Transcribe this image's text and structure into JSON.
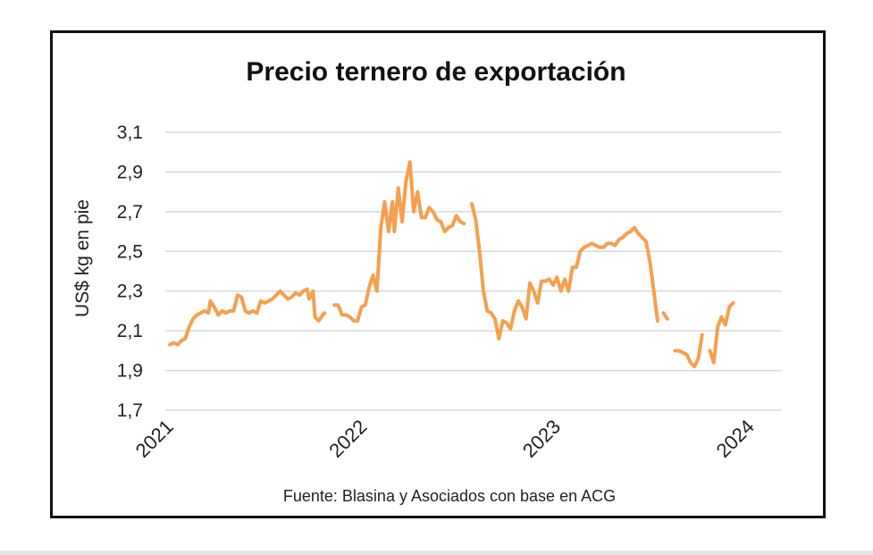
{
  "chart_data": {
    "type": "line",
    "title": "Precio ternero de exportación",
    "ylabel": "US$ kg en pie",
    "xlabel": "",
    "source": "Fuente: Blasina y Asociados con base en ACG",
    "ylim": [
      1.7,
      3.1
    ],
    "xlim": [
      2021.0,
      2024.0
    ],
    "y_ticks": [
      "1,7",
      "1,9",
      "2,1",
      "2,3",
      "2,5",
      "2,7",
      "2,9",
      "3,1"
    ],
    "y_tick_values": [
      1.7,
      1.9,
      2.1,
      2.3,
      2.5,
      2.7,
      2.9,
      3.1
    ],
    "x_ticks": [
      "2021",
      "2022",
      "2023",
      "2024"
    ],
    "x_tick_values": [
      2021,
      2022,
      2023,
      2024
    ],
    "grid": "horizontal",
    "line_color": "#f4a04f",
    "series": [
      {
        "segments": [
          [
            [
              2021.0,
              2.03
            ],
            [
              2021.02,
              2.04
            ],
            [
              2021.04,
              2.03
            ],
            [
              2021.06,
              2.05
            ],
            [
              2021.08,
              2.06
            ],
            [
              2021.1,
              2.12
            ],
            [
              2021.12,
              2.16
            ],
            [
              2021.14,
              2.18
            ],
            [
              2021.16,
              2.19
            ],
            [
              2021.18,
              2.2
            ],
            [
              2021.2,
              2.19
            ],
            [
              2021.21,
              2.25
            ],
            [
              2021.23,
              2.22
            ],
            [
              2021.25,
              2.18
            ],
            [
              2021.27,
              2.2
            ],
            [
              2021.29,
              2.19
            ],
            [
              2021.31,
              2.2
            ],
            [
              2021.33,
              2.2
            ],
            [
              2021.35,
              2.28
            ],
            [
              2021.37,
              2.27
            ],
            [
              2021.39,
              2.2
            ],
            [
              2021.41,
              2.19
            ],
            [
              2021.43,
              2.2
            ],
            [
              2021.45,
              2.19
            ],
            [
              2021.47,
              2.25
            ],
            [
              2021.49,
              2.24
            ],
            [
              2021.51,
              2.25
            ],
            [
              2021.53,
              2.26
            ],
            [
              2021.55,
              2.28
            ],
            [
              2021.57,
              2.3
            ],
            [
              2021.59,
              2.28
            ],
            [
              2021.61,
              2.26
            ],
            [
              2021.63,
              2.27
            ],
            [
              2021.65,
              2.29
            ],
            [
              2021.67,
              2.28
            ],
            [
              2021.69,
              2.3
            ],
            [
              2021.71,
              2.31
            ],
            [
              2021.72,
              2.26
            ],
            [
              2021.74,
              2.3
            ],
            [
              2021.75,
              2.17
            ],
            [
              2021.77,
              2.15
            ],
            [
              2021.79,
              2.18
            ],
            [
              2021.8,
              2.19
            ]
          ],
          [
            [
              2021.85,
              2.23
            ],
            [
              2021.87,
              2.23
            ],
            [
              2021.89,
              2.18
            ],
            [
              2021.91,
              2.18
            ],
            [
              2021.93,
              2.17
            ],
            [
              2021.95,
              2.15
            ],
            [
              2021.97,
              2.15
            ],
            [
              2021.99,
              2.22
            ],
            [
              2022.01,
              2.23
            ],
            [
              2022.03,
              2.32
            ],
            [
              2022.05,
              2.38
            ],
            [
              2022.07,
              2.3
            ],
            [
              2022.09,
              2.62
            ],
            [
              2022.11,
              2.75
            ],
            [
              2022.13,
              2.6
            ],
            [
              2022.15,
              2.75
            ],
            [
              2022.16,
              2.6
            ],
            [
              2022.18,
              2.82
            ],
            [
              2022.2,
              2.65
            ],
            [
              2022.22,
              2.85
            ],
            [
              2022.24,
              2.95
            ],
            [
              2022.26,
              2.7
            ],
            [
              2022.28,
              2.8
            ],
            [
              2022.3,
              2.67
            ],
            [
              2022.32,
              2.67
            ],
            [
              2022.34,
              2.72
            ],
            [
              2022.36,
              2.7
            ],
            [
              2022.38,
              2.66
            ],
            [
              2022.4,
              2.65
            ],
            [
              2022.42,
              2.6
            ],
            [
              2022.44,
              2.62
            ],
            [
              2022.46,
              2.63
            ],
            [
              2022.48,
              2.68
            ],
            [
              2022.5,
              2.65
            ],
            [
              2022.52,
              2.64
            ]
          ],
          [
            [
              2022.56,
              2.74
            ],
            [
              2022.58,
              2.66
            ],
            [
              2022.6,
              2.5
            ],
            [
              2022.62,
              2.3
            ],
            [
              2022.64,
              2.2
            ],
            [
              2022.66,
              2.19
            ],
            [
              2022.68,
              2.16
            ],
            [
              2022.7,
              2.06
            ],
            [
              2022.72,
              2.15
            ],
            [
              2022.74,
              2.14
            ],
            [
              2022.76,
              2.11
            ],
            [
              2022.78,
              2.2
            ],
            [
              2022.8,
              2.25
            ],
            [
              2022.82,
              2.22
            ],
            [
              2022.84,
              2.16
            ],
            [
              2022.86,
              2.34
            ],
            [
              2022.88,
              2.3
            ],
            [
              2022.9,
              2.24
            ],
            [
              2022.92,
              2.35
            ],
            [
              2022.94,
              2.35
            ],
            [
              2022.96,
              2.36
            ],
            [
              2022.98,
              2.33
            ],
            [
              2023.0,
              2.37
            ],
            [
              2023.02,
              2.3
            ],
            [
              2023.04,
              2.36
            ],
            [
              2023.06,
              2.3
            ],
            [
              2023.08,
              2.42
            ],
            [
              2023.1,
              2.42
            ],
            [
              2023.12,
              2.5
            ],
            [
              2023.14,
              2.52
            ],
            [
              2023.16,
              2.53
            ],
            [
              2023.18,
              2.54
            ],
            [
              2023.2,
              2.53
            ],
            [
              2023.22,
              2.52
            ],
            [
              2023.24,
              2.52
            ],
            [
              2023.26,
              2.54
            ],
            [
              2023.28,
              2.54
            ],
            [
              2023.3,
              2.53
            ],
            [
              2023.32,
              2.56
            ],
            [
              2023.34,
              2.57
            ],
            [
              2023.36,
              2.59
            ],
            [
              2023.38,
              2.6
            ],
            [
              2023.4,
              2.62
            ],
            [
              2023.42,
              2.59
            ],
            [
              2023.44,
              2.57
            ],
            [
              2023.46,
              2.55
            ],
            [
              2023.48,
              2.45
            ],
            [
              2023.5,
              2.3
            ],
            [
              2023.52,
              2.15
            ]
          ],
          [
            [
              2023.55,
              2.19
            ],
            [
              2023.57,
              2.16
            ]
          ],
          [
            [
              2023.61,
              2.0
            ],
            [
              2023.63,
              2.0
            ],
            [
              2023.65,
              1.99
            ],
            [
              2023.67,
              1.98
            ],
            [
              2023.69,
              1.94
            ],
            [
              2023.71,
              1.92
            ],
            [
              2023.73,
              1.96
            ],
            [
              2023.75,
              2.08
            ]
          ],
          [
            [
              2023.79,
              2.0
            ],
            [
              2023.81,
              1.94
            ],
            [
              2023.83,
              2.12
            ],
            [
              2023.85,
              2.17
            ],
            [
              2023.87,
              2.13
            ],
            [
              2023.89,
              2.22
            ],
            [
              2023.91,
              2.24
            ]
          ]
        ]
      }
    ]
  }
}
